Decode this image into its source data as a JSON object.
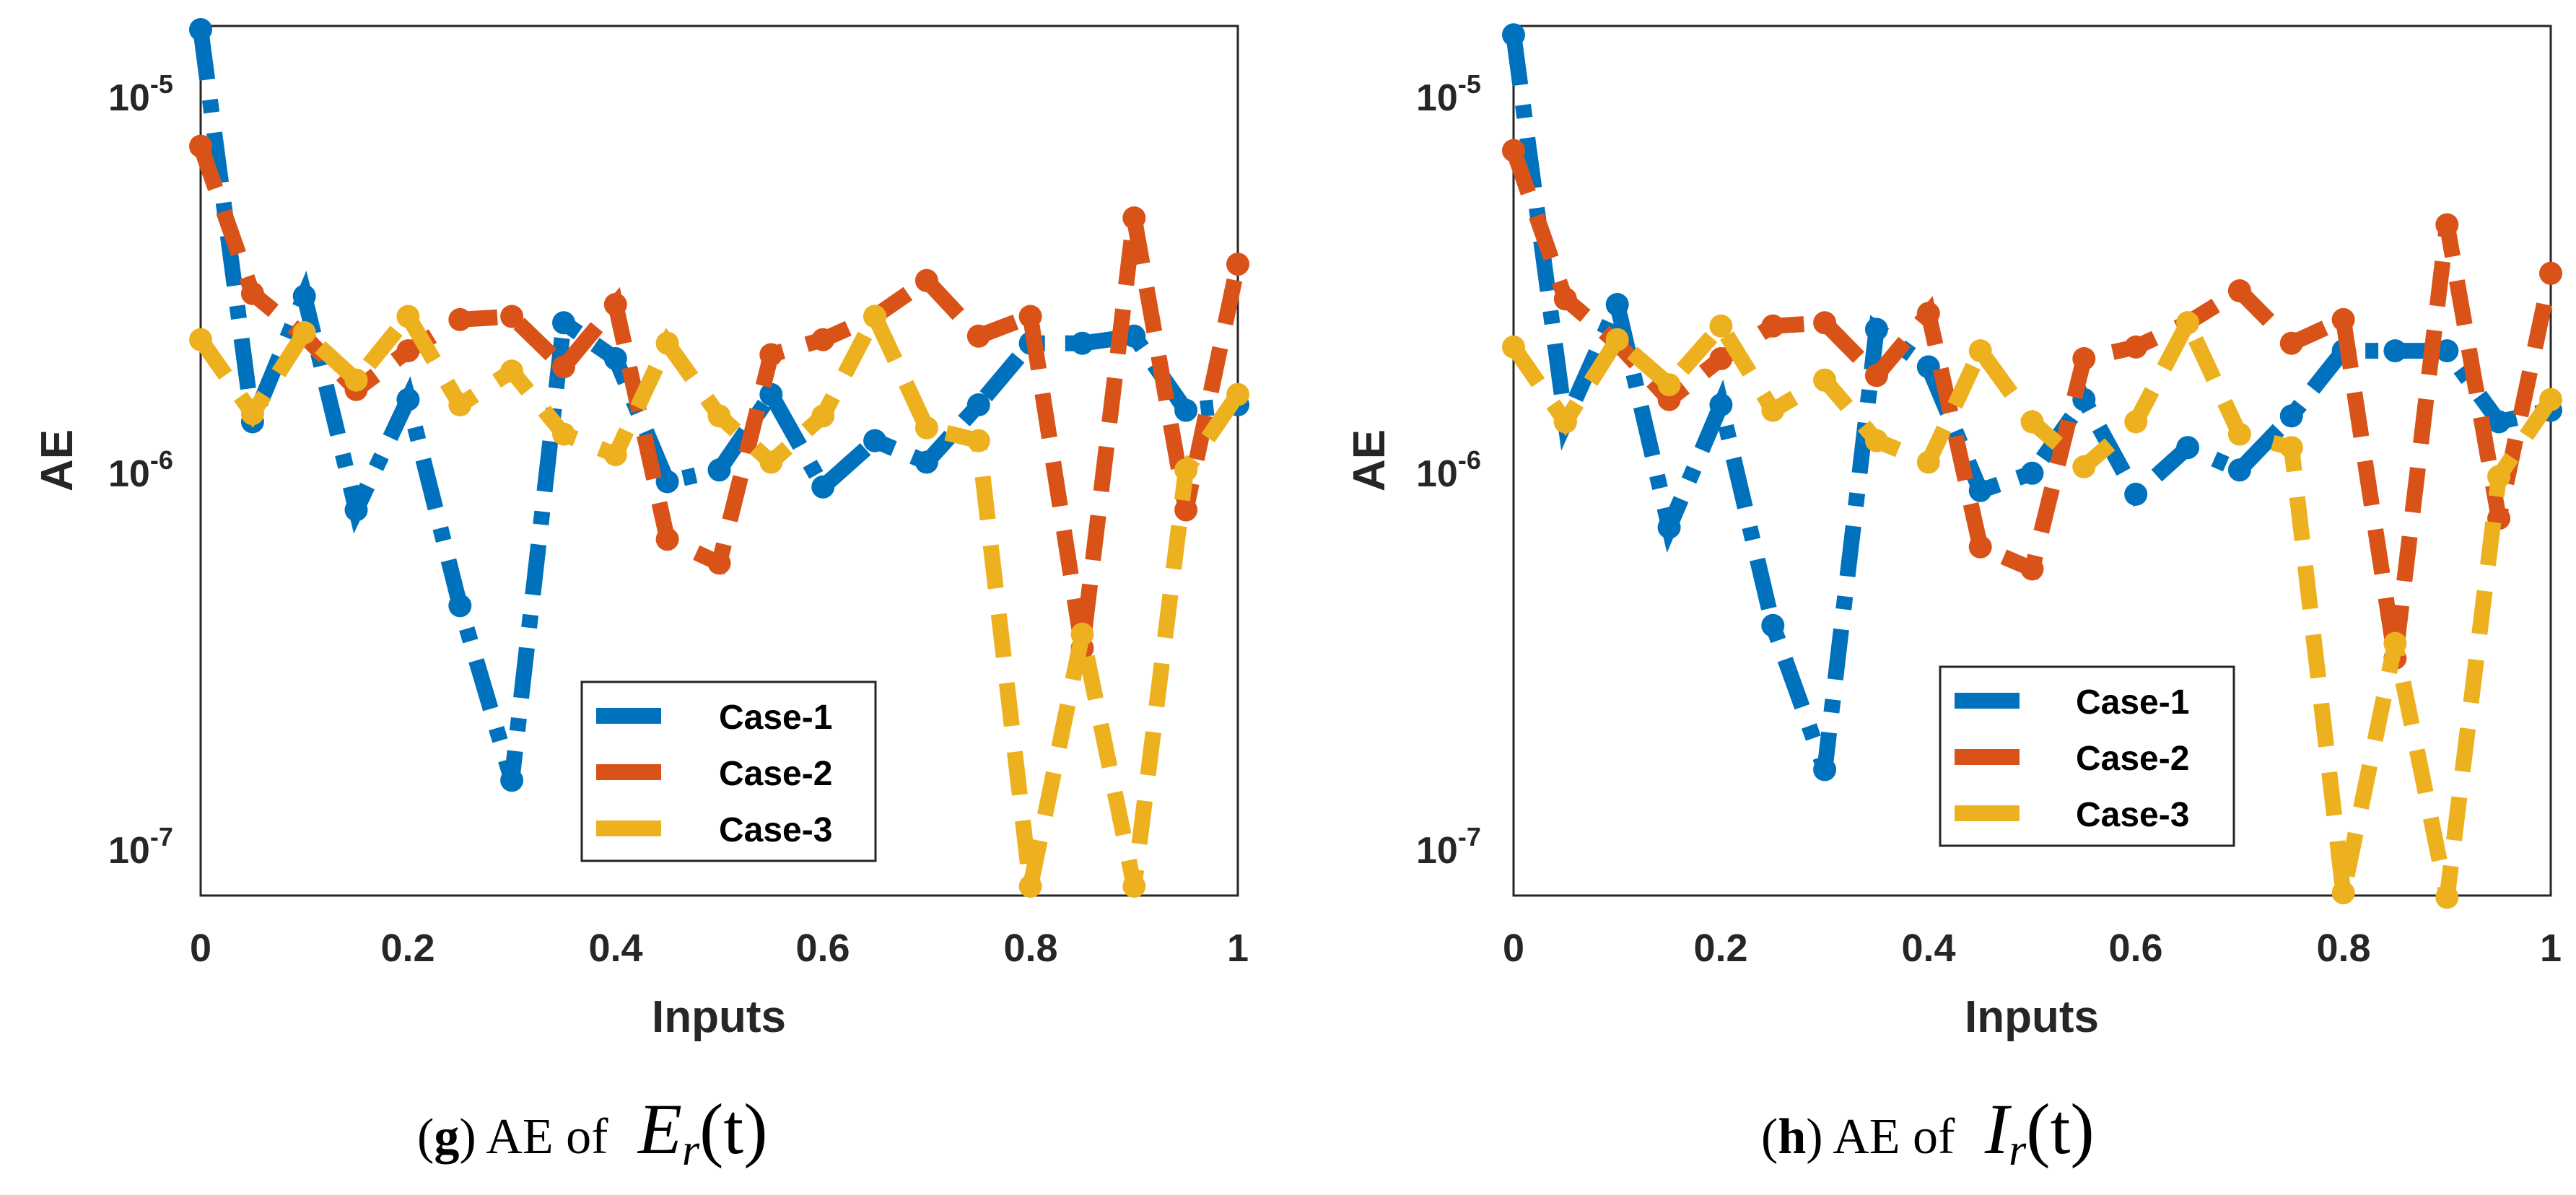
{
  "colors": {
    "case1": "#0072BD",
    "case2": "#D95319",
    "case3": "#EDB120",
    "axis": "#262626"
  },
  "chart_data": [
    {
      "type": "line",
      "panel": "g",
      "xlabel": "Inputs",
      "ylabel": "AE",
      "xlim": [
        0,
        1
      ],
      "ylim_log10": [
        -7.15,
        -4.8
      ],
      "yscale": "log",
      "xticks": [
        0,
        0.2,
        0.4,
        0.6,
        0.8,
        1
      ],
      "xtick_labels": [
        "0",
        "0.2",
        "0.4",
        "0.6",
        "0.8",
        "1"
      ],
      "yticks_log10": [
        -7,
        -6,
        -5
      ],
      "ytick_mantissa": [
        "10",
        "10",
        "10"
      ],
      "ytick_exponent": [
        "-7",
        "-6",
        "-5"
      ],
      "legend_position": "lower-center",
      "x": [
        0,
        0.05,
        0.1,
        0.15,
        0.2,
        0.25,
        0.3,
        0.35,
        0.4,
        0.45,
        0.5,
        0.55,
        0.6,
        0.65,
        0.7,
        0.75,
        0.8,
        0.85,
        0.9,
        0.95,
        1
      ],
      "series": [
        {
          "name": "Case-1",
          "values": [
            1.55e-05,
            1.35e-06,
            2.95e-06,
            7.8e-07,
            1.55e-06,
            4.3e-07,
            1.45e-07,
            2.5e-06,
            2e-06,
            9.3e-07,
            1e-06,
            1.6e-06,
            9e-07,
            1.2e-06,
            1.05e-06,
            1.5e-06,
            2.2e-06,
            2.2e-06,
            2.3e-06,
            1.45e-06,
            1.5e-06
          ]
        },
        {
          "name": "Case-2",
          "values": [
            7.5e-06,
            3e-06,
            2.3e-06,
            1.65e-06,
            2.1e-06,
            2.55e-06,
            2.6e-06,
            1.9e-06,
            2.8e-06,
            6.5e-07,
            5.6e-07,
            2.05e-06,
            2.25e-06,
            2.6e-06,
            3.25e-06,
            2.3e-06,
            2.6e-06,
            3.3e-07,
            4.8e-06,
            7.8e-07,
            3.6e-06
          ]
        },
        {
          "name": "Case-3",
          "values": [
            2.25e-06,
            1.42e-06,
            2.35e-06,
            1.75e-06,
            2.6e-06,
            1.5e-06,
            1.85e-06,
            1.25e-06,
            1.1e-06,
            2.2e-06,
            1.4e-06,
            1.05e-06,
            1.4e-06,
            2.6e-06,
            1.3e-06,
            1.2e-06,
            7.5e-08,
            3.6e-07,
            7.5e-08,
            1e-06,
            1.6e-06
          ]
        }
      ],
      "caption": {
        "letter": "g",
        "prefix": " AE of ",
        "symbol": "E",
        "subscript": "r",
        "arg": "(t)"
      }
    },
    {
      "type": "line",
      "panel": "h",
      "xlabel": "Inputs",
      "ylabel": "AE",
      "xlim": [
        0,
        1
      ],
      "ylim_log10": [
        -7.15,
        -4.8
      ],
      "yscale": "log",
      "xticks": [
        0,
        0.2,
        0.4,
        0.6,
        0.8,
        1
      ],
      "xtick_labels": [
        "0",
        "0.2",
        "0.4",
        "0.6",
        "0.8",
        "1"
      ],
      "yticks_log10": [
        -7,
        -6,
        -5
      ],
      "ytick_mantissa": [
        "10",
        "10",
        "10"
      ],
      "ytick_exponent": [
        "-7",
        "-6",
        "-5"
      ],
      "legend_position": "lower-center",
      "x": [
        0,
        0.05,
        0.1,
        0.15,
        0.2,
        0.25,
        0.3,
        0.35,
        0.4,
        0.45,
        0.5,
        0.55,
        0.6,
        0.65,
        0.7,
        0.75,
        0.8,
        0.85,
        0.9,
        0.95,
        1
      ],
      "series": [
        {
          "name": "Case-1",
          "values": [
            1.5e-05,
            1.35e-06,
            2.8e-06,
            7e-07,
            1.5e-06,
            3.8e-07,
            1.55e-07,
            2.4e-06,
            1.9e-06,
            8.8e-07,
            9.8e-07,
            1.55e-06,
            8.6e-07,
            1.15e-06,
            1e-06,
            1.4e-06,
            2.1e-06,
            2.1e-06,
            2.1e-06,
            1.35e-06,
            1.45e-06
          ]
        },
        {
          "name": "Case-2",
          "values": [
            7.3e-06,
            2.9e-06,
            2.2e-06,
            1.55e-06,
            2e-06,
            2.45e-06,
            2.5e-06,
            1.8e-06,
            2.65e-06,
            6.2e-07,
            5.4e-07,
            2e-06,
            2.15e-06,
            2.5e-06,
            3.05e-06,
            2.2e-06,
            2.55e-06,
            3.1e-07,
            4.6e-06,
            7.4e-07,
            3.4e-06
          ]
        },
        {
          "name": "Case-3",
          "values": [
            2.15e-06,
            1.35e-06,
            2.25e-06,
            1.7e-06,
            2.45e-06,
            1.45e-06,
            1.75e-06,
            1.2e-06,
            1.05e-06,
            2.1e-06,
            1.35e-06,
            1.02e-06,
            1.35e-06,
            2.5e-06,
            1.25e-06,
            1.15e-06,
            7.2e-08,
            3.4e-07,
            7e-08,
            9.6e-07,
            1.55e-06
          ]
        }
      ],
      "caption": {
        "letter": "h",
        "prefix": " AE of ",
        "symbol": "I",
        "subscript": "r",
        "arg": "(t)"
      }
    }
  ]
}
